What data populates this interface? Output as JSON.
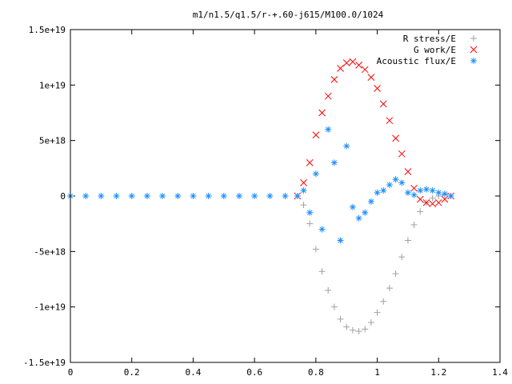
{
  "chart_data": {
    "type": "scatter",
    "title": "m1/n1.5/q1.5/r-+.60-j615/M100.0/1024",
    "xlabel": "",
    "ylabel": "",
    "xlim": [
      0,
      1.4
    ],
    "ylim": [
      -1.5e+19,
      1.5e+19
    ],
    "x_ticks": [
      0,
      0.2,
      0.4,
      0.6,
      0.8,
      1,
      1.2,
      1.4
    ],
    "x_tick_labels": [
      "0",
      "0.2",
      "0.4",
      "0.6",
      "0.8",
      "1",
      "1.2",
      "1.4"
    ],
    "y_ticks": [
      -1.5e+19,
      -1e+19,
      -5e+18,
      0,
      5e+18,
      1e+19,
      1.5e+19
    ],
    "y_tick_labels": [
      "-1.5e+19",
      "-1e+19",
      "-5e+18",
      "0",
      "5e+18",
      "1e+19",
      "1.5e+19"
    ],
    "grid": false,
    "legend_position": "top-right",
    "series": [
      {
        "name": "R stress/E",
        "marker": "plus",
        "color": "#a0a0a0",
        "x": [
          0.74,
          0.76,
          0.78,
          0.8,
          0.82,
          0.84,
          0.86,
          0.88,
          0.9,
          0.92,
          0.94,
          0.96,
          0.98,
          1.0,
          1.02,
          1.04,
          1.06,
          1.08,
          1.1,
          1.12,
          1.14,
          1.16,
          1.18,
          1.2,
          1.22,
          1.24
        ],
        "y": [
          0,
          -8e+17,
          -2.5e+18,
          -4.8e+18,
          -6.8e+18,
          -8.5e+18,
          -1e+19,
          -1.11e+19,
          -1.18e+19,
          -1.21e+19,
          -1.22e+19,
          -1.2e+19,
          -1.14e+19,
          -1.05e+19,
          -9.5e+18,
          -8.3e+18,
          -7e+18,
          -5.5e+18,
          -4e+18,
          -2.6e+18,
          -1.4e+18,
          -6e+17,
          -2e+17,
          0,
          1e+17,
          0
        ]
      },
      {
        "name": "G work/E",
        "marker": "cross",
        "color": "#ff0000",
        "x": [
          0.74,
          0.76,
          0.78,
          0.8,
          0.82,
          0.84,
          0.86,
          0.88,
          0.9,
          0.92,
          0.94,
          0.96,
          0.98,
          1.0,
          1.02,
          1.04,
          1.06,
          1.08,
          1.1,
          1.12,
          1.14,
          1.16,
          1.18,
          1.2,
          1.22,
          1.24
        ],
        "y": [
          0,
          1.2e+18,
          3e+18,
          5.5e+18,
          7.5e+18,
          9e+18,
          1.05e+19,
          1.15e+19,
          1.2e+19,
          1.21e+19,
          1.18e+19,
          1.14e+19,
          1.07e+19,
          9.7e+18,
          8.3e+18,
          6.8e+18,
          5.2e+18,
          3.8e+18,
          2.2e+18,
          7e+17,
          -3e+17,
          -6e+17,
          -7e+17,
          -6e+17,
          -3e+17,
          0
        ]
      },
      {
        "name": "Acoustic flux/E",
        "marker": "star",
        "color": "#1e90ff",
        "x": [
          0,
          0.05,
          0.1,
          0.15,
          0.2,
          0.25,
          0.3,
          0.35,
          0.4,
          0.45,
          0.5,
          0.55,
          0.6,
          0.65,
          0.7,
          0.74,
          0.76,
          0.78,
          0.8,
          0.82,
          0.84,
          0.86,
          0.88,
          0.9,
          0.92,
          0.94,
          0.96,
          0.98,
          1.0,
          1.02,
          1.04,
          1.06,
          1.08,
          1.1,
          1.12,
          1.14,
          1.16,
          1.18,
          1.2,
          1.22,
          1.24
        ],
        "y": [
          0,
          0,
          0,
          0,
          0,
          0,
          0,
          0,
          0,
          0,
          0,
          0,
          0,
          0,
          0,
          0,
          5e+17,
          -1.5e+18,
          2e+18,
          -3e+18,
          6e+18,
          3e+18,
          -4e+18,
          4.5e+18,
          -1e+18,
          -2e+18,
          -1.5e+18,
          -5e+17,
          3e+17,
          5e+17,
          1e+18,
          1.5e+18,
          1.2e+18,
          3e+17,
          1e+17,
          5e+17,
          6e+17,
          5e+17,
          3e+17,
          2e+17,
          0
        ]
      }
    ]
  }
}
